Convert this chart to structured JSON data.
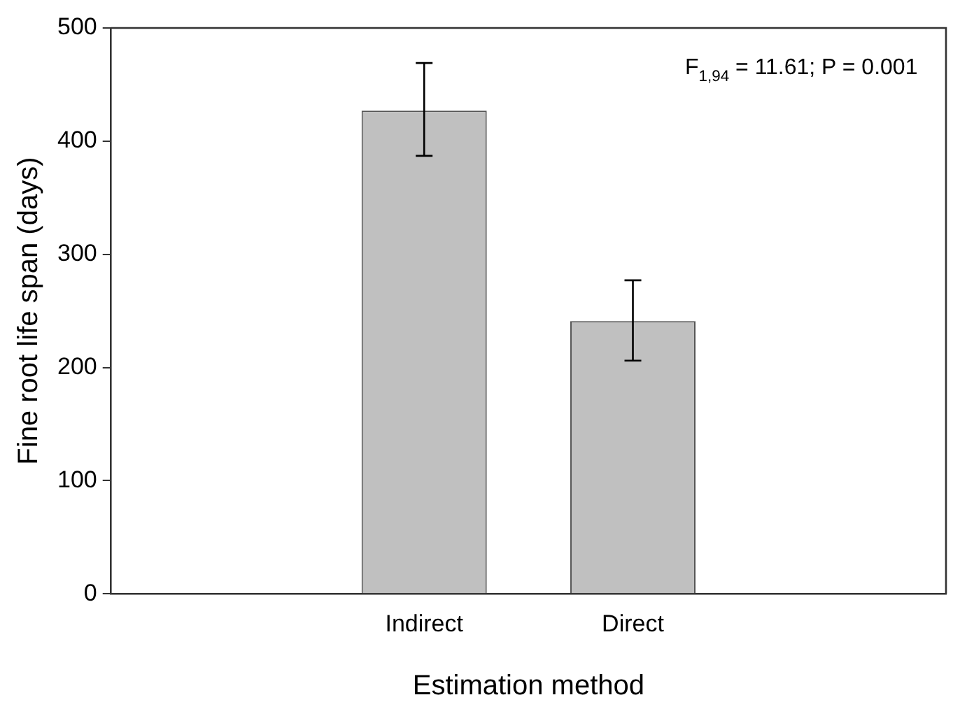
{
  "chart_data": {
    "type": "bar",
    "xlabel": "Estimation method",
    "ylabel": "Fine root life span (days)",
    "categories": [
      null,
      "Indirect",
      "Direct",
      null
    ],
    "values": [
      null,
      427,
      241,
      null
    ],
    "errors": [
      null,
      [
        387,
        469
      ],
      [
        206,
        277
      ],
      null
    ],
    "color": "#c0c0c0",
    "ylim": [
      0,
      500
    ],
    "yticks": [
      0,
      100,
      200,
      300,
      400,
      500
    ],
    "annotations": [
      "F$_{1,94}$ = 11.61; P = 0.001"
    ],
    "grid": false,
    "legend": false
  }
}
